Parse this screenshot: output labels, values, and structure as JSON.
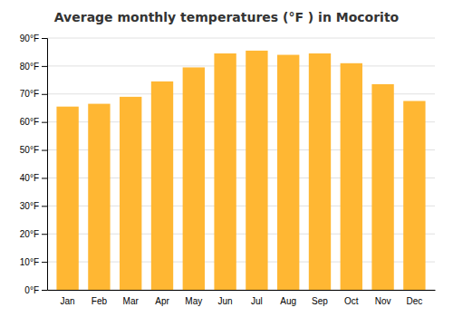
{
  "chart_data": {
    "type": "bar",
    "title": "Average monthly temperatures (°F ) in Mocorito",
    "categories": [
      "Jan",
      "Feb",
      "Mar",
      "Apr",
      "May",
      "Jun",
      "Jul",
      "Aug",
      "Sep",
      "Oct",
      "Nov",
      "Dec"
    ],
    "values": [
      65.5,
      66.5,
      69.0,
      74.5,
      79.5,
      84.5,
      85.5,
      84.0,
      84.5,
      81.0,
      73.5,
      67.5
    ],
    "color": "#FFB733",
    "ylim": [
      0,
      90
    ],
    "yticks": [
      {
        "value": 0,
        "label": "0°F"
      },
      {
        "value": 10,
        "label": "10°F"
      },
      {
        "value": 20,
        "label": "20°F"
      },
      {
        "value": 30,
        "label": "30°F"
      },
      {
        "value": 40,
        "label": "40°F"
      },
      {
        "value": 50,
        "label": "50°F"
      },
      {
        "value": 60,
        "label": "60°F"
      },
      {
        "value": 70,
        "label": "70°F"
      },
      {
        "value": 80,
        "label": "80°F"
      },
      {
        "value": 90,
        "label": "90°F"
      }
    ],
    "grid": true
  }
}
